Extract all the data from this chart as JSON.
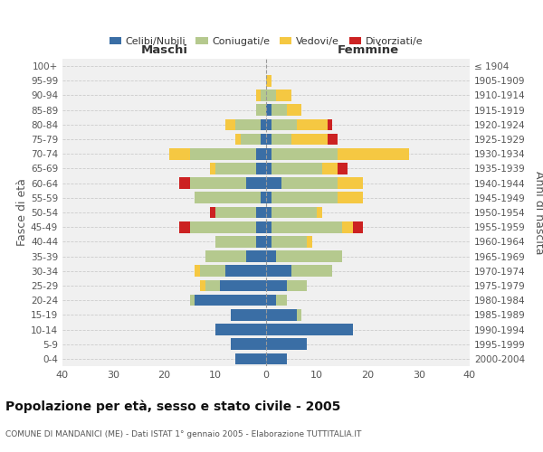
{
  "age_groups": [
    "0-4",
    "5-9",
    "10-14",
    "15-19",
    "20-24",
    "25-29",
    "30-34",
    "35-39",
    "40-44",
    "45-49",
    "50-54",
    "55-59",
    "60-64",
    "65-69",
    "70-74",
    "75-79",
    "80-84",
    "85-89",
    "90-94",
    "95-99",
    "100+"
  ],
  "birth_years": [
    "2000-2004",
    "1995-1999",
    "1990-1994",
    "1985-1989",
    "1980-1984",
    "1975-1979",
    "1970-1974",
    "1965-1969",
    "1960-1964",
    "1955-1959",
    "1950-1954",
    "1945-1949",
    "1940-1944",
    "1935-1939",
    "1930-1934",
    "1925-1929",
    "1920-1924",
    "1915-1919",
    "1910-1914",
    "1905-1909",
    "≤ 1904"
  ],
  "maschi": {
    "celibi": [
      6,
      7,
      10,
      7,
      14,
      9,
      8,
      4,
      2,
      2,
      2,
      1,
      4,
      2,
      2,
      1,
      1,
      0,
      0,
      0,
      0
    ],
    "coniugati": [
      0,
      0,
      0,
      0,
      1,
      3,
      5,
      8,
      8,
      13,
      8,
      13,
      11,
      8,
      13,
      4,
      5,
      2,
      1,
      0,
      0
    ],
    "vedovi": [
      0,
      0,
      0,
      0,
      0,
      1,
      1,
      0,
      0,
      0,
      0,
      0,
      0,
      1,
      4,
      1,
      2,
      0,
      1,
      0,
      0
    ],
    "divorziati": [
      0,
      0,
      0,
      0,
      0,
      0,
      0,
      0,
      0,
      2,
      1,
      0,
      2,
      0,
      0,
      0,
      0,
      0,
      0,
      0,
      0
    ]
  },
  "femmine": {
    "nubili": [
      4,
      8,
      17,
      6,
      2,
      4,
      5,
      2,
      1,
      1,
      1,
      1,
      3,
      1,
      1,
      1,
      1,
      1,
      0,
      0,
      0
    ],
    "coniugate": [
      0,
      0,
      0,
      1,
      2,
      4,
      8,
      13,
      7,
      14,
      9,
      13,
      11,
      10,
      13,
      4,
      5,
      3,
      2,
      0,
      0
    ],
    "vedove": [
      0,
      0,
      0,
      0,
      0,
      0,
      0,
      0,
      1,
      2,
      1,
      5,
      5,
      3,
      14,
      7,
      6,
      3,
      3,
      1,
      0
    ],
    "divorziate": [
      0,
      0,
      0,
      0,
      0,
      0,
      0,
      0,
      0,
      2,
      0,
      0,
      0,
      2,
      0,
      2,
      1,
      0,
      0,
      0,
      0
    ]
  },
  "colors": {
    "celibi": "#3a6ea5",
    "coniugati": "#b5c98e",
    "vedovi": "#f5c842",
    "divorziati": "#cc2222"
  },
  "xlim": 40,
  "title": "Popolazione per età, sesso e stato civile - 2005",
  "subtitle": "COMUNE DI MANDANICI (ME) - Dati ISTAT 1° gennaio 2005 - Elaborazione TUTTITALIA.IT",
  "ylabel_left": "Fasce di età",
  "ylabel_right": "Anni di nascita",
  "legend_labels": [
    "Celibi/Nubili",
    "Coniugati/e",
    "Vedovi/e",
    "Divorziati/e"
  ],
  "header_maschi": "Maschi",
  "header_femmine": "Femmine"
}
